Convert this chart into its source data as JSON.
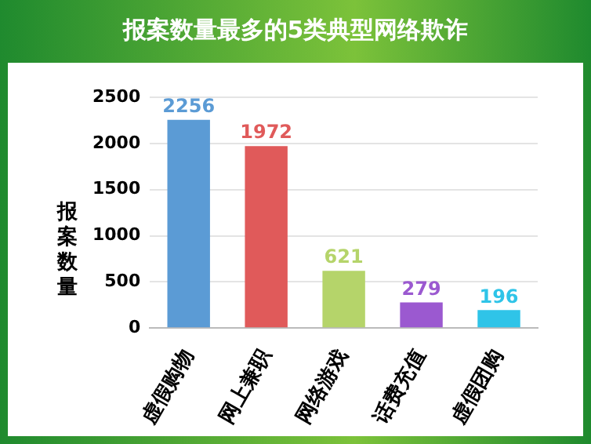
{
  "chart_data": {
    "type": "bar",
    "title": "报案数量最多的5类典型网络欺诈",
    "ylabel": "报案数量",
    "categories": [
      "虚假购物",
      "网上兼职",
      "网络游戏",
      "话费充值",
      "虚假团购"
    ],
    "values": [
      2256,
      1972,
      621,
      279,
      196
    ],
    "colors": [
      "#5b9bd5",
      "#e05a5a",
      "#b5d46a",
      "#9b59d0",
      "#2fc4e8"
    ],
    "ylim": [
      0,
      2500
    ],
    "yticks": [
      0,
      500,
      1000,
      1500,
      2000,
      2500
    ],
    "grid": "y",
    "data_labels": true,
    "legend": false
  }
}
